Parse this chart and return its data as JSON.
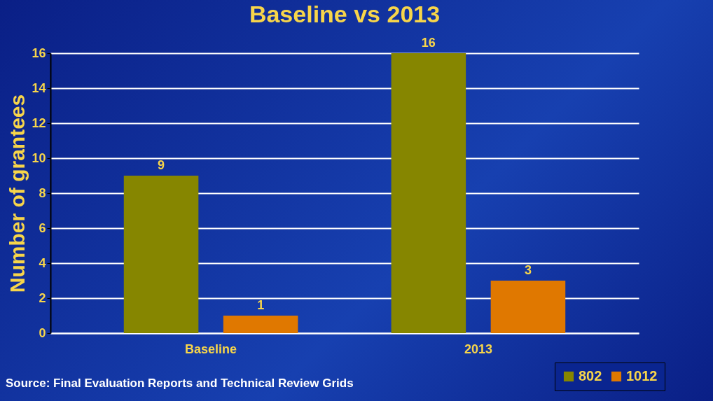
{
  "chart_data": {
    "type": "bar",
    "title": "Baseline vs 2013",
    "ylabel": "Number of grantees",
    "categories": [
      "Baseline",
      "2013"
    ],
    "series": [
      {
        "name": "802",
        "color": "#868600",
        "values": [
          9,
          16
        ]
      },
      {
        "name": "1012",
        "color": "#e07800",
        "values": [
          1,
          3
        ]
      }
    ],
    "ylim": [
      0,
      16
    ],
    "yticks": [
      0,
      2,
      4,
      6,
      8,
      10,
      12,
      14,
      16
    ],
    "grid": "y",
    "data_labels": true,
    "legend": "bottom right",
    "annotations": [
      "Source: Final Evaluation Reports and Technical Review Grids"
    ]
  }
}
